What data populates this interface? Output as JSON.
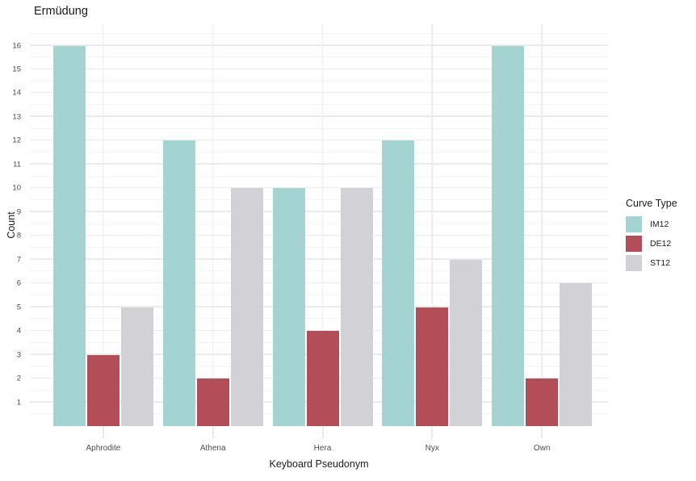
{
  "chart_data": {
    "type": "bar",
    "title": "Ermüdung",
    "xlabel": "Keyboard Pseudonym",
    "ylabel": "Count",
    "legend_title": "Curve Type",
    "legend_position": "right",
    "categories": [
      "Aphrodite",
      "Athena",
      "Hera",
      "Nyx",
      "Own"
    ],
    "series": [
      {
        "name": "IM12",
        "color": "#A3D4D2",
        "values": [
          16,
          12,
          10,
          12,
          16
        ]
      },
      {
        "name": "DE12",
        "color": "#B24E57",
        "values": [
          3,
          2,
          4,
          5,
          2
        ]
      },
      {
        "name": "ST12",
        "color": "#D2D2D6",
        "values": [
          5,
          10,
          10,
          7,
          6
        ]
      }
    ],
    "y_ticks": [
      1,
      2,
      3,
      4,
      5,
      6,
      7,
      8,
      9,
      10,
      11,
      12,
      13,
      14,
      15,
      16
    ],
    "ylim": [
      0,
      16.9
    ],
    "grid": "major+minor",
    "colors": {
      "background": "#FFFFFF",
      "grid_major": "#EBEBEB",
      "grid_minor": "#F4F4F4",
      "axis_text": "#4D4D4D",
      "title_text": "#1A1A1A"
    }
  }
}
